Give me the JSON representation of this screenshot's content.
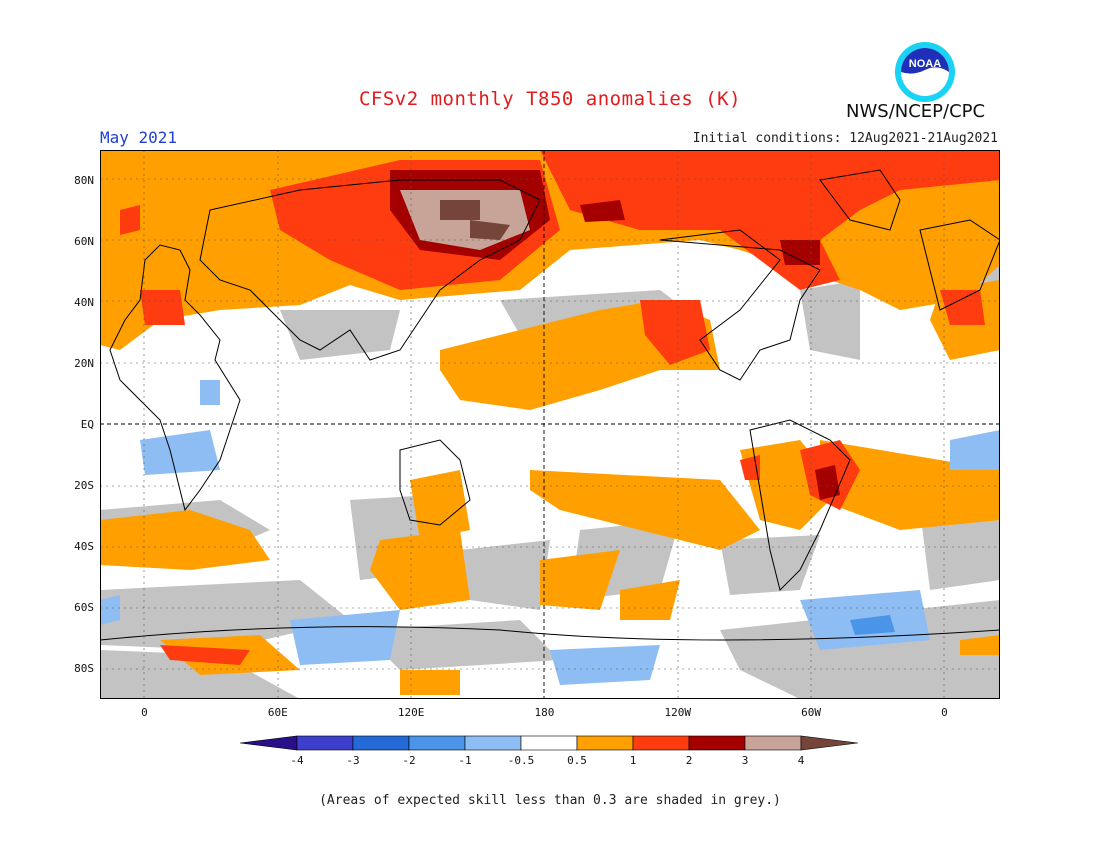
{
  "header": {
    "title": "CFSv2 monthly T850 anomalies (K)",
    "period": "May 2021",
    "initial_conditions": "Initial conditions: 12Aug2021-21Aug2021",
    "organization": "NWS/NCEP/CPC",
    "logo_text": "NOAA"
  },
  "axes": {
    "lat_labels": [
      "80N",
      "60N",
      "40N",
      "20N",
      "EQ",
      "20S",
      "40S",
      "60S",
      "80S"
    ],
    "lat_values": [
      80,
      60,
      40,
      20,
      0,
      -20,
      -40,
      -60,
      -80
    ],
    "lon_labels": [
      "0",
      "60E",
      "120E",
      "180",
      "120W",
      "60W",
      "0"
    ],
    "lon_values": [
      0,
      60,
      120,
      180,
      240,
      300,
      360
    ],
    "lat_range": [
      -90,
      90
    ],
    "lon_range": [
      -20,
      385
    ]
  },
  "legend": {
    "labels": [
      "-4",
      "-3",
      "-2",
      "-1",
      "-0.5",
      "0.5",
      "1",
      "2",
      "3",
      "4"
    ],
    "colors": [
      "#2a0f8a",
      "#3d3fcc",
      "#2469d8",
      "#4a95e8",
      "#8dbdf2",
      "#ffffff",
      "#ff9f00",
      "#ff3c0f",
      "#a50000",
      "#c8a397",
      "#744538"
    ]
  },
  "footer": {
    "note": "(Areas of expected skill less than 0.3 are shaded in grey.)"
  },
  "colors": {
    "title": "#e41a1c",
    "period": "#1f3fd6",
    "grey_low_skill": "#c3c3c3",
    "coast": "#000000"
  }
}
